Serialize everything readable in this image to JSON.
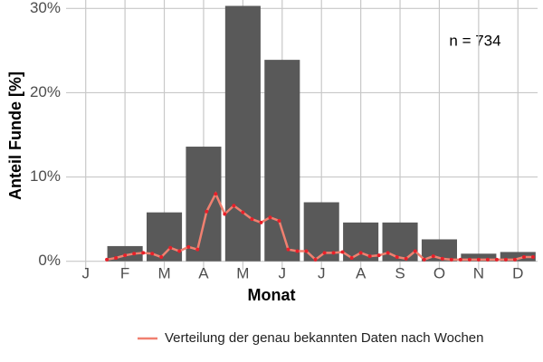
{
  "chart_data": {
    "type": "bar",
    "categories": [
      "J",
      "F",
      "M",
      "A",
      "M",
      "J",
      "J",
      "A",
      "S",
      "O",
      "N",
      "D"
    ],
    "values": [
      0,
      1.8,
      5.8,
      13.6,
      30.3,
      23.9,
      7.0,
      4.6,
      4.6,
      2.6,
      0.9,
      1.1
    ],
    "color": "#595959",
    "xlabel": "Monat",
    "ylabel": "Anteil Funde [%]",
    "annotation": "n = 734",
    "ylim": [
      -1,
      31
    ],
    "yticks": [
      {
        "value": 0,
        "label": "0%"
      },
      {
        "value": 10,
        "label": "10%"
      },
      {
        "value": 20,
        "label": "20%"
      },
      {
        "value": 30,
        "label": "30%"
      }
    ],
    "grid": true,
    "legend": "bottom",
    "series": [
      {
        "name": "Verteilung der genau bekannten Daten nach Wochen",
        "color": "#f08070",
        "point_color": "#e8202a",
        "x": [
          5,
          6,
          7,
          8,
          9,
          10,
          11,
          12,
          13,
          14,
          15,
          16,
          17,
          18,
          19,
          20,
          21,
          22,
          23,
          24,
          25,
          26,
          27,
          28,
          29,
          30,
          31,
          32,
          33,
          34,
          35,
          36,
          37,
          38,
          39,
          40,
          41,
          42,
          43,
          44,
          45,
          46,
          47,
          48,
          49,
          50,
          51,
          52
        ],
        "values": [
          0.2,
          0.4,
          0.7,
          0.9,
          1.0,
          0.9,
          0.5,
          1.6,
          1.2,
          1.7,
          1.4,
          5.9,
          8.0,
          5.6,
          6.6,
          5.8,
          5.0,
          4.6,
          5.2,
          4.8,
          1.4,
          1.2,
          1.2,
          0.2,
          1.0,
          1.0,
          1.1,
          0.4,
          1.0,
          0.6,
          0.7,
          1.0,
          0.5,
          0.3,
          1.2,
          0.2,
          0.6,
          0.3,
          0.2,
          0.2,
          0.2,
          0.2,
          0.2,
          0.2,
          0.2,
          0.2,
          0.5,
          0.5
        ]
      }
    ]
  }
}
